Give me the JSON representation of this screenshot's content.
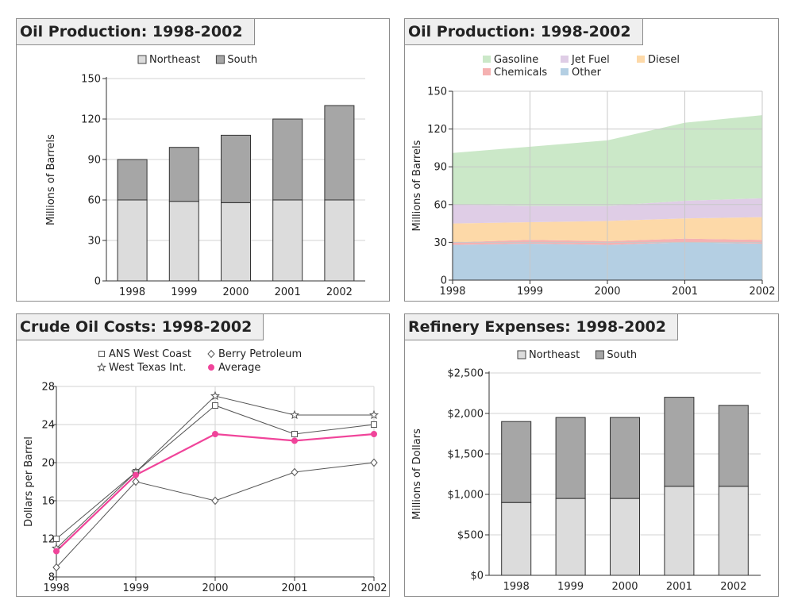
{
  "chart_data": [
    {
      "type": "bar",
      "stacked": true,
      "title": "Oil Production: 1998-2002",
      "ylabel": "Millions of Barrels",
      "categories": [
        "1998",
        "1999",
        "2000",
        "2001",
        "2002"
      ],
      "series": [
        {
          "name": "Northeast",
          "values": [
            60,
            59,
            58,
            60,
            60
          ],
          "color": "#dcdcdc"
        },
        {
          "name": "South",
          "values": [
            30,
            40,
            50,
            60,
            70
          ],
          "color": "#a6a6a6"
        }
      ],
      "ylim": [
        0,
        150
      ],
      "yticks": [
        "0",
        "30",
        "60",
        "90",
        "120",
        "150"
      ],
      "grid": true,
      "legend": "top-center"
    },
    {
      "type": "area",
      "stacked": true,
      "title": "Oil Production: 1998-2002",
      "ylabel": "Millions of Barrels",
      "x": [
        "1998",
        "1999",
        "2000",
        "2001",
        "2002"
      ],
      "series": [
        {
          "name": "Other",
          "values": [
            28,
            29,
            28,
            30,
            29
          ],
          "color": "#b4cfe3"
        },
        {
          "name": "Chemicals",
          "values": [
            2,
            3,
            3,
            3,
            3
          ],
          "color": "#f5b1b1"
        },
        {
          "name": "Diesel",
          "values": [
            15,
            14,
            16,
            16,
            18
          ],
          "color": "#fdd9a8"
        },
        {
          "name": "Jet Fuel",
          "values": [
            15,
            13,
            12,
            14,
            15
          ],
          "color": "#dfcde6"
        },
        {
          "name": "Gasoline",
          "values": [
            41,
            47,
            52,
            62,
            66
          ],
          "color": "#cbe8c8"
        }
      ],
      "legend_order": [
        "Gasoline",
        "Jet Fuel",
        "Diesel",
        "Chemicals",
        "Other"
      ],
      "ylim": [
        0,
        150
      ],
      "yticks": [
        "0",
        "30",
        "60",
        "90",
        "120",
        "150"
      ],
      "grid": true,
      "legend": "top-center"
    },
    {
      "type": "line",
      "title": "Crude Oil Costs: 1998-2002",
      "ylabel": "Dollars per Barrel",
      "x": [
        "1998",
        "1999",
        "2000",
        "2001",
        "2002"
      ],
      "series": [
        {
          "name": "ANS West Coast",
          "values": [
            12,
            19,
            26,
            23,
            24
          ],
          "color": "#555555",
          "marker": "square"
        },
        {
          "name": "Berry Petroleum",
          "values": [
            9,
            18,
            16,
            19,
            20
          ],
          "color": "#555555",
          "marker": "diamond"
        },
        {
          "name": "West Texas Int.",
          "values": [
            11,
            19,
            27,
            25,
            25
          ],
          "color": "#555555",
          "marker": "star"
        },
        {
          "name": "Average",
          "values": [
            10.7,
            18.7,
            23,
            22.3,
            23
          ],
          "color": "#f0449a",
          "marker": "circle"
        }
      ],
      "ylim": [
        8,
        28
      ],
      "yticks": [
        "8",
        "12",
        "16",
        "20",
        "24",
        "28"
      ],
      "grid": true,
      "legend": "top-center"
    },
    {
      "type": "bar",
      "stacked": true,
      "title": "Refinery Expenses: 1998-2002",
      "ylabel": "Millions of Dollars",
      "categories": [
        "1998",
        "1999",
        "2000",
        "2001",
        "2002"
      ],
      "series": [
        {
          "name": "Northeast",
          "values": [
            900,
            950,
            950,
            1100,
            1100
          ],
          "color": "#dcdcdc"
        },
        {
          "name": "South",
          "values": [
            1000,
            1000,
            1000,
            1100,
            1000
          ],
          "color": "#a6a6a6"
        }
      ],
      "ylim": [
        0,
        2500
      ],
      "yticks": [
        "$0",
        "$500",
        "$1,000",
        "$1,500",
        "$2,000",
        "$2,500"
      ],
      "grid": true,
      "legend": "top-center"
    }
  ]
}
